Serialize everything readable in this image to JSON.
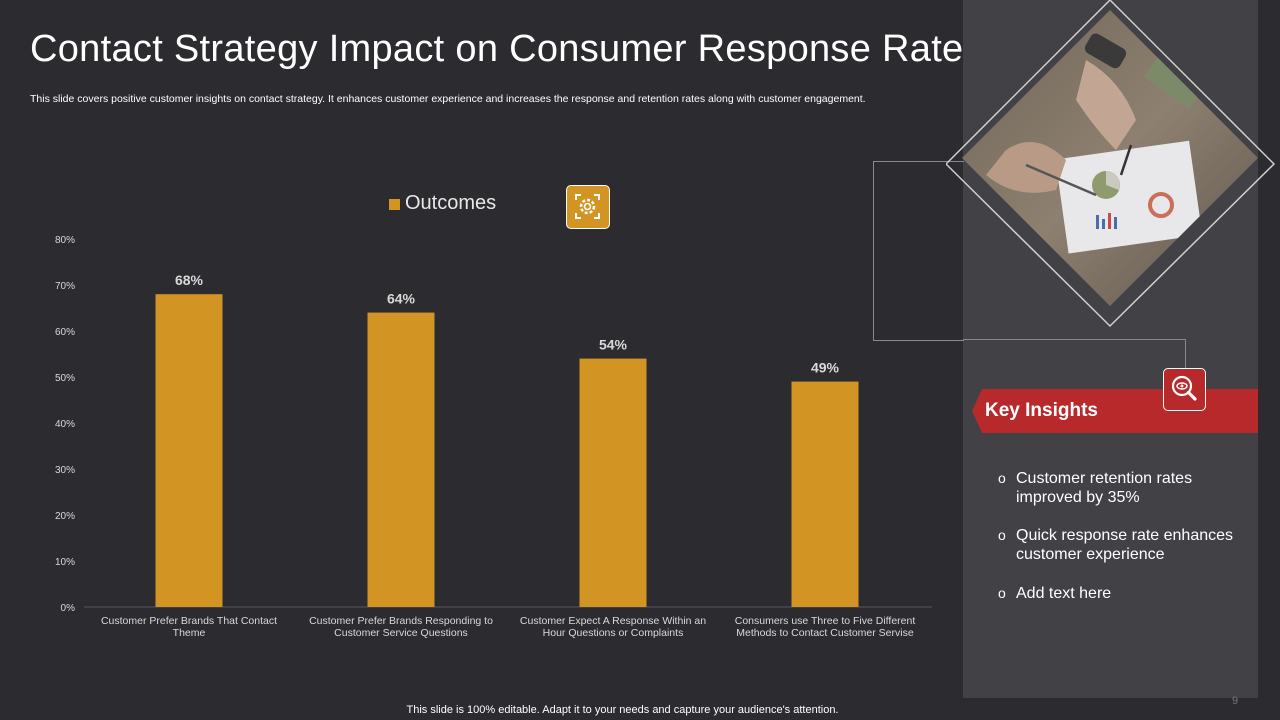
{
  "slide": {
    "title": "Contact Strategy Impact on Consumer Response Rate",
    "subtitle": "This slide covers positive customer insights on contact strategy. It enhances customer experience and increases the response and retention rates along with customer engagement.",
    "footer": "This slide is 100% editable. Adapt it to your needs and capture your audience's attention.",
    "page_number": "9"
  },
  "insights": {
    "heading": "Key Insights",
    "bullet_symbol": "o",
    "items": [
      "Customer retention rates improved by 35%",
      "Quick response rate enhances customer experience",
      "Add text here"
    ]
  },
  "icons": {
    "legend_badge": "gear-icon",
    "insights_badge": "magnifier-eye-icon",
    "photo": "business-analysis-photo"
  },
  "colors": {
    "background": "#2c2c30",
    "panel": "#414146",
    "bar": "#d29423",
    "accent_red": "#b7292b"
  },
  "chart_data": {
    "type": "bar",
    "title": "",
    "legend": [
      "Outcomes"
    ],
    "legend_placement": "top-center",
    "categories": [
      [
        "Customer Prefer Brands That Contact",
        "Theme"
      ],
      [
        "Customer Prefer Brands Responding to",
        "Customer Service Questions"
      ],
      [
        "Customer Expect A Response Within an",
        "Hour Questions or Complaints"
      ],
      [
        "Consumers use Three to Five Different",
        "Methods  to Contact Customer Servise"
      ]
    ],
    "series": [
      {
        "name": "Outcomes",
        "values": [
          68,
          64,
          54,
          49
        ]
      }
    ],
    "data_labels": [
      "68%",
      "64%",
      "54%",
      "49%"
    ],
    "yticks": [
      "0%",
      "10%",
      "20%",
      "30%",
      "40%",
      "50%",
      "60%",
      "70%",
      "80%"
    ],
    "ylim": [
      0,
      80
    ],
    "xlabel": "",
    "ylabel": "",
    "grid": false
  }
}
